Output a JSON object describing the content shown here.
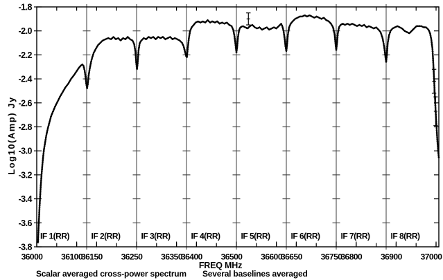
{
  "chart_data": {
    "type": "line",
    "xlabel": "FREQ MHz",
    "ylabel": "Log10(Amp) Jy",
    "footer_left": "Scalar averaged cross-power spectrum",
    "footer_right": "Several baselines averaged",
    "x_range": [
      36000,
      37007
    ],
    "y_range": [
      -3.8,
      -1.8
    ],
    "grid": false,
    "legend": false,
    "colors": {
      "line": "#000000",
      "axis": "#000000",
      "divider": "#3d3d3d",
      "background": "#ffffff"
    },
    "y_ticks": [
      -1.8,
      -2.0,
      -2.2,
      -2.4,
      -2.6,
      -2.8,
      -3.0,
      -3.2,
      -3.4,
      -3.6,
      -3.8
    ],
    "x_tick_labels": [
      {
        "value": 36000,
        "label": "36000"
      },
      {
        "value": 36100,
        "label": "36100"
      },
      {
        "value": 36150,
        "label": "36150"
      },
      {
        "value": 36250,
        "label": "36250"
      },
      {
        "value": 36350,
        "label": "36350"
      },
      {
        "value": 36400,
        "label": "36400"
      },
      {
        "value": 36500,
        "label": "36500"
      },
      {
        "value": 36600,
        "label": "36600"
      },
      {
        "value": 36650,
        "label": "36650"
      },
      {
        "value": 36750,
        "label": "36750"
      },
      {
        "value": 36800,
        "label": "36800"
      },
      {
        "value": 36900,
        "label": "36900"
      },
      {
        "value": 37000,
        "label": "37000"
      }
    ],
    "minor_x_ticks": [
      36050,
      36100,
      36150,
      36200,
      36300,
      36350,
      36400,
      36450,
      36550,
      36600,
      36650,
      36700,
      36800,
      36850,
      36900,
      36950,
      37000
    ],
    "panel_dividers": [
      36125,
      36250,
      36375,
      36500,
      36625,
      36750,
      36875
    ],
    "if_labels": [
      {
        "label": "IF 1(RR)",
        "start": 36000
      },
      {
        "label": "IF 2(RR)",
        "start": 36125
      },
      {
        "label": "IF 3(RR)",
        "start": 36250
      },
      {
        "label": "IF 4(RR)",
        "start": 36375
      },
      {
        "label": "IF 5(RR)",
        "start": 36500
      },
      {
        "label": "IF 6(RR)",
        "start": 36625
      },
      {
        "label": "IF 7(RR)",
        "start": 36750
      },
      {
        "label": "IF 8(RR)",
        "start": 36875
      }
    ],
    "series": [
      {
        "name": "scalar averaged cross-power spectrum",
        "marker": "plus",
        "color": "#000000",
        "points": [
          [
            36003,
            -3.77
          ],
          [
            36004,
            -3.69
          ],
          [
            36005,
            -3.61
          ],
          [
            36006,
            -3.54
          ],
          [
            36007,
            -3.47
          ],
          [
            36008,
            -3.41
          ],
          [
            36009,
            -3.35
          ],
          [
            36010,
            -3.29
          ],
          [
            36012,
            -3.2
          ],
          [
            36014,
            -3.12
          ],
          [
            36016,
            -3.05
          ],
          [
            36018,
            -2.99
          ],
          [
            36021,
            -2.93
          ],
          [
            36024,
            -2.87
          ],
          [
            36028,
            -2.81
          ],
          [
            36032,
            -2.76
          ],
          [
            36036,
            -2.71
          ],
          [
            36041,
            -2.67
          ],
          [
            36046,
            -2.63
          ],
          [
            36052,
            -2.59
          ],
          [
            36058,
            -2.55
          ],
          [
            36065,
            -2.51
          ],
          [
            36072,
            -2.47
          ],
          [
            36079,
            -2.44
          ],
          [
            36086,
            -2.4
          ],
          [
            36093,
            -2.37
          ],
          [
            36099,
            -2.34
          ],
          [
            36105,
            -2.31
          ],
          [
            36110,
            -2.29
          ],
          [
            36114,
            -2.28
          ],
          [
            36117,
            -2.29
          ],
          [
            36120,
            -2.33
          ],
          [
            36122,
            -2.38
          ],
          [
            36124,
            -2.44
          ],
          [
            36126,
            -2.48
          ],
          [
            36128,
            -2.44
          ],
          [
            36130,
            -2.37
          ],
          [
            36133,
            -2.31
          ],
          [
            36136,
            -2.26
          ],
          [
            36139,
            -2.22
          ],
          [
            36143,
            -2.18
          ],
          [
            36148,
            -2.15
          ],
          [
            36153,
            -2.12
          ],
          [
            36159,
            -2.1
          ],
          [
            36165,
            -2.08
          ],
          [
            36172,
            -2.07
          ],
          [
            36179,
            -2.06
          ],
          [
            36186,
            -2.07
          ],
          [
            36192,
            -2.05
          ],
          [
            36198,
            -2.07
          ],
          [
            36204,
            -2.06
          ],
          [
            36210,
            -2.08
          ],
          [
            36216,
            -2.06
          ],
          [
            36222,
            -2.07
          ],
          [
            36228,
            -2.05
          ],
          [
            36234,
            -2.07
          ],
          [
            36240,
            -2.08
          ],
          [
            36244,
            -2.11
          ],
          [
            36247,
            -2.17
          ],
          [
            36249,
            -2.26
          ],
          [
            36251,
            -2.32
          ],
          [
            36253,
            -2.26
          ],
          [
            36255,
            -2.16
          ],
          [
            36258,
            -2.1
          ],
          [
            36262,
            -2.08
          ],
          [
            36268,
            -2.06
          ],
          [
            36274,
            -2.07
          ],
          [
            36280,
            -2.05
          ],
          [
            36286,
            -2.06
          ],
          [
            36292,
            -2.05
          ],
          [
            36298,
            -2.07
          ],
          [
            36304,
            -2.05
          ],
          [
            36310,
            -2.06
          ],
          [
            36316,
            -2.05
          ],
          [
            36322,
            -2.07
          ],
          [
            36328,
            -2.06
          ],
          [
            36334,
            -2.05
          ],
          [
            36340,
            -2.07
          ],
          [
            36346,
            -2.06
          ],
          [
            36352,
            -2.07
          ],
          [
            36358,
            -2.08
          ],
          [
            36364,
            -2.1
          ],
          [
            36368,
            -2.13
          ],
          [
            36371,
            -2.17
          ],
          [
            36374,
            -2.21
          ],
          [
            36376,
            -2.22
          ],
          [
            36378,
            -2.15
          ],
          [
            36381,
            -2.06
          ],
          [
            36384,
            -2.0
          ],
          [
            36388,
            -1.97
          ],
          [
            36393,
            -1.95
          ],
          [
            36398,
            -1.93
          ],
          [
            36404,
            -1.92
          ],
          [
            36410,
            -1.93
          ],
          [
            36416,
            -1.92
          ],
          [
            36422,
            -1.93
          ],
          [
            36428,
            -1.91
          ],
          [
            36434,
            -1.93
          ],
          [
            36440,
            -1.92
          ],
          [
            36446,
            -1.93
          ],
          [
            36452,
            -1.92
          ],
          [
            36458,
            -1.94
          ],
          [
            36464,
            -1.93
          ],
          [
            36470,
            -1.94
          ],
          [
            36476,
            -1.93
          ],
          [
            36482,
            -1.95
          ],
          [
            36488,
            -1.96
          ],
          [
            36492,
            -1.99
          ],
          [
            36495,
            -2.04
          ],
          [
            36498,
            -2.12
          ],
          [
            36500,
            -2.18
          ],
          [
            36502,
            -2.13
          ],
          [
            36504,
            -2.05
          ],
          [
            36507,
            -1.99
          ],
          [
            36510,
            -1.97
          ],
          [
            36516,
            -1.96
          ],
          [
            36522,
            -1.97
          ],
          [
            36528,
            -1.98
          ],
          [
            36534,
            -1.96
          ],
          [
            36540,
            -1.95
          ],
          [
            36546,
            -1.97
          ],
          [
            36552,
            -1.98
          ],
          [
            36558,
            -1.97
          ],
          [
            36564,
            -1.99
          ],
          [
            36570,
            -1.98
          ],
          [
            36576,
            -1.97
          ],
          [
            36582,
            -1.99
          ],
          [
            36588,
            -1.98
          ],
          [
            36594,
            -1.97
          ],
          [
            36600,
            -1.98
          ],
          [
            36606,
            -1.96
          ],
          [
            36612,
            -1.94
          ],
          [
            36615,
            -1.96
          ],
          [
            36618,
            -2.0
          ],
          [
            36621,
            -2.07
          ],
          [
            36623,
            -2.13
          ],
          [
            36625,
            -2.17
          ],
          [
            36627,
            -2.11
          ],
          [
            36629,
            -2.03
          ],
          [
            36632,
            -1.97
          ],
          [
            36636,
            -1.94
          ],
          [
            36641,
            -1.92
          ],
          [
            36647,
            -1.9
          ],
          [
            36653,
            -1.89
          ],
          [
            36659,
            -1.88
          ],
          [
            36665,
            -1.88
          ],
          [
            36671,
            -1.87
          ],
          [
            36677,
            -1.88
          ],
          [
            36683,
            -1.87
          ],
          [
            36689,
            -1.88
          ],
          [
            36695,
            -1.89
          ],
          [
            36701,
            -1.88
          ],
          [
            36707,
            -1.89
          ],
          [
            36713,
            -1.9
          ],
          [
            36719,
            -1.89
          ],
          [
            36725,
            -1.91
          ],
          [
            36731,
            -1.92
          ],
          [
            36737,
            -1.94
          ],
          [
            36742,
            -1.97
          ],
          [
            36746,
            -2.03
          ],
          [
            36748,
            -2.1
          ],
          [
            36750,
            -2.16
          ],
          [
            36752,
            -2.1
          ],
          [
            36754,
            -2.02
          ],
          [
            36757,
            -1.97
          ],
          [
            36761,
            -1.95
          ],
          [
            36766,
            -1.94
          ],
          [
            36772,
            -1.95
          ],
          [
            36778,
            -1.94
          ],
          [
            36784,
            -1.95
          ],
          [
            36790,
            -1.94
          ],
          [
            36796,
            -1.95
          ],
          [
            36802,
            -1.96
          ],
          [
            36808,
            -1.95
          ],
          [
            36814,
            -1.96
          ],
          [
            36820,
            -1.95
          ],
          [
            36826,
            -1.97
          ],
          [
            36832,
            -1.96
          ],
          [
            36838,
            -1.97
          ],
          [
            36844,
            -1.98
          ],
          [
            36850,
            -1.97
          ],
          [
            36856,
            -1.99
          ],
          [
            36861,
            -2.01
          ],
          [
            36866,
            -2.06
          ],
          [
            36870,
            -2.13
          ],
          [
            36873,
            -2.21
          ],
          [
            36875,
            -2.26
          ],
          [
            36877,
            -2.19
          ],
          [
            36879,
            -2.1
          ],
          [
            36882,
            -2.04
          ],
          [
            36886,
            -2.0
          ],
          [
            36891,
            -1.98
          ],
          [
            36897,
            -1.97
          ],
          [
            36903,
            -1.96
          ],
          [
            36909,
            -1.97
          ],
          [
            36915,
            -1.98
          ],
          [
            36921,
            -2.0
          ],
          [
            36927,
            -2.01
          ],
          [
            36933,
            -2.02
          ],
          [
            36939,
            -2.0
          ],
          [
            36945,
            -1.98
          ],
          [
            36951,
            -1.96
          ],
          [
            36957,
            -1.96
          ],
          [
            36963,
            -1.96
          ],
          [
            36969,
            -1.97
          ],
          [
            36975,
            -1.97
          ],
          [
            36981,
            -1.99
          ],
          [
            36985,
            -2.02
          ],
          [
            36988,
            -2.07
          ],
          [
            36991,
            -2.15
          ],
          [
            36993,
            -2.27
          ],
          [
            36995,
            -2.4
          ],
          [
            36997,
            -2.54
          ],
          [
            36999,
            -2.67
          ],
          [
            37001,
            -2.79
          ],
          [
            37003,
            -2.9
          ],
          [
            37005,
            -2.99
          ],
          [
            37007,
            -3.06
          ]
        ]
      }
    ],
    "error_points": [
      {
        "x": 36530,
        "y": -1.9,
        "err": 0.05
      },
      {
        "x": 36995,
        "y": -2.42,
        "err": 0.1
      },
      {
        "x": 36999,
        "y": -2.67,
        "err": 0.12
      }
    ]
  }
}
